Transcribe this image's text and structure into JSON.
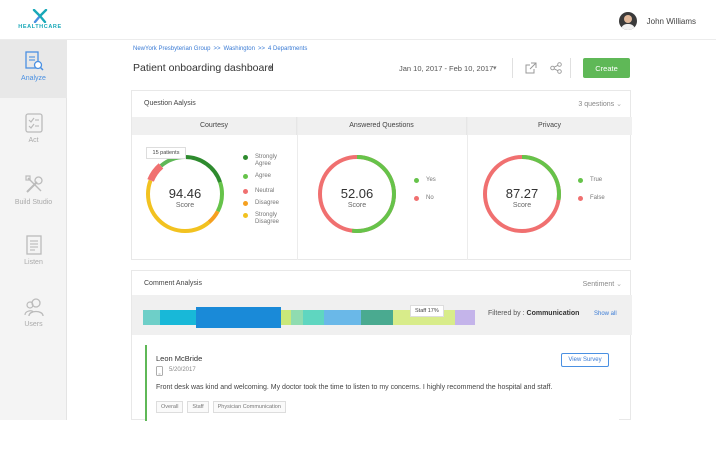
{
  "brand": {
    "logo_text": "HEALTHCARE",
    "accent": "#18a8b8"
  },
  "user": {
    "name": "John Williams"
  },
  "sidebar": {
    "items": [
      {
        "label": "Analyze",
        "icon": "analyze-icon",
        "active": true
      },
      {
        "label": "Act",
        "icon": "act-icon",
        "active": false
      },
      {
        "label": "Build Studio",
        "icon": "build-studio-icon",
        "active": false
      },
      {
        "label": "Listen",
        "icon": "listen-icon",
        "active": false
      },
      {
        "label": "Users",
        "icon": "users-icon",
        "active": false
      }
    ]
  },
  "breadcrumb": {
    "items": [
      "NewYork Presbyterian Group",
      "Washington",
      "4 Departments"
    ],
    "separator": ">>"
  },
  "header": {
    "title": "Patient onboarding dashboard",
    "date_range": "Jan 10, 2017 - Feb 10, 2017",
    "create_label": "Create",
    "create_color": "#5fb857"
  },
  "question_analysis": {
    "title": "Question Aalysis",
    "question_count": "3 questions",
    "columns": [
      {
        "title": "Courtesy",
        "score": "94.46",
        "score_label": "Score",
        "tooltip": "15 patients",
        "legend": [
          {
            "label": "Strongly Agree",
            "color": "#2e8b2e"
          },
          {
            "label": "Agree",
            "color": "#66c34a"
          },
          {
            "label": "Neutral",
            "color": "#f07070"
          },
          {
            "label": "Disagree",
            "color": "#f5a020"
          },
          {
            "label": "Strongly Disagree",
            "color": "#f2c220"
          }
        ]
      },
      {
        "title": "Answered Questions",
        "score": "52.06",
        "score_label": "Score",
        "legend": [
          {
            "label": "Yes",
            "color": "#66c34a"
          },
          {
            "label": "No",
            "color": "#f07070"
          }
        ]
      },
      {
        "title": "Privacy",
        "score": "87.27",
        "score_label": "Score",
        "legend": [
          {
            "label": "True",
            "color": "#66c34a"
          },
          {
            "label": "False",
            "color": "#f07070"
          }
        ]
      }
    ]
  },
  "comment_analysis": {
    "title": "Comment Analysis",
    "sort_label": "Sentiment",
    "strip_tooltip": "Staff 17%",
    "filter_prefix": "Filtered by :",
    "filter_value": "Communication",
    "show_all": "Show all",
    "comment": {
      "name": "Leon McBride",
      "date": "5/20/2017",
      "view_label": "View Survey",
      "text": "Front desk was kind and welcoming. My doctor took the time to listen to my concerns. I highly recommend the hospital and staff.",
      "tags": [
        "Overall",
        "Staff",
        "Physician Communication"
      ]
    }
  }
}
